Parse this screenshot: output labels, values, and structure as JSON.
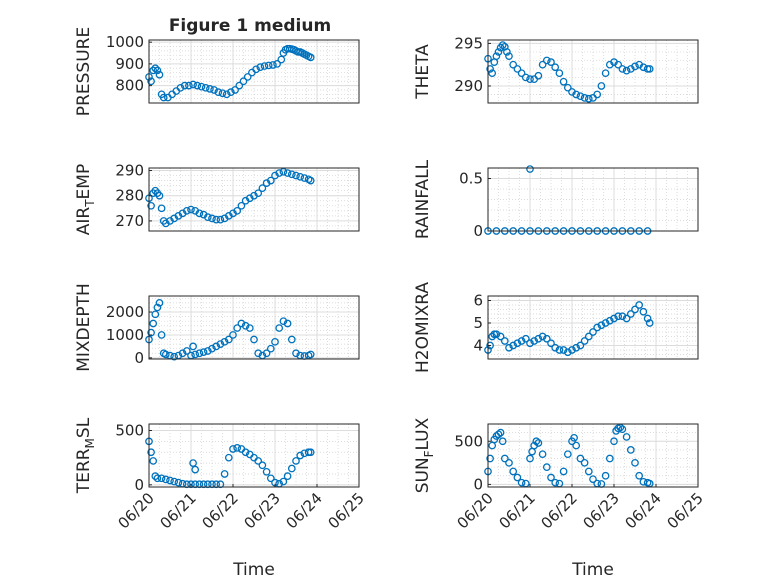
{
  "figure": {
    "title": "Figure 1 medium",
    "marker_color": "#0072BD",
    "marker": "open-circle",
    "grid": true,
    "minor_grid": true
  },
  "chart_data": [
    {
      "type": "scatter",
      "ylabel": "PRESSURE",
      "xlim": [
        "06/20",
        "06/25"
      ],
      "ylim": [
        720,
        1010
      ],
      "yticks": [
        800,
        900,
        1000
      ],
      "xticks": [],
      "series": [
        {
          "x": [
            0.0,
            0.05,
            0.1,
            0.15,
            0.2,
            0.25,
            0.3,
            0.35,
            0.45,
            0.55,
            0.65,
            0.75,
            0.85,
            0.95,
            1.05,
            1.15,
            1.25,
            1.35,
            1.45,
            1.55,
            1.65,
            1.75,
            1.85,
            1.95,
            2.05,
            2.15,
            2.25,
            2.35,
            2.45,
            2.55,
            2.65,
            2.75,
            2.85,
            2.95,
            3.05,
            3.15,
            3.2,
            3.25,
            3.3,
            3.35,
            3.4,
            3.45,
            3.5,
            3.55,
            3.6,
            3.65,
            3.7,
            3.75,
            3.8,
            3.85
          ],
          "y": [
            840,
            820,
            870,
            880,
            870,
            850,
            760,
            745,
            745,
            760,
            775,
            790,
            800,
            800,
            805,
            800,
            795,
            790,
            785,
            780,
            770,
            765,
            760,
            770,
            780,
            800,
            820,
            840,
            860,
            875,
            885,
            890,
            893,
            895,
            900,
            920,
            950,
            965,
            970,
            970,
            968,
            965,
            960,
            955,
            955,
            950,
            945,
            940,
            935,
            930
          ]
        }
      ]
    },
    {
      "type": "scatter",
      "ylabel": "THETA",
      "xlim": [
        "06/20",
        "06/25"
      ],
      "ylim": [
        288,
        295.4
      ],
      "yticks": [
        290,
        295
      ],
      "xticks": [],
      "series": [
        {
          "x": [
            0.0,
            0.05,
            0.1,
            0.15,
            0.2,
            0.25,
            0.3,
            0.35,
            0.4,
            0.45,
            0.5,
            0.6,
            0.7,
            0.8,
            0.9,
            1.0,
            1.1,
            1.2,
            1.3,
            1.4,
            1.5,
            1.6,
            1.7,
            1.8,
            1.9,
            2.0,
            2.1,
            2.2,
            2.3,
            2.4,
            2.5,
            2.6,
            2.7,
            2.8,
            2.9,
            3.0,
            3.1,
            3.2,
            3.3,
            3.4,
            3.5,
            3.6,
            3.7,
            3.8,
            3.85
          ],
          "y": [
            293.2,
            292.0,
            291.5,
            292.8,
            293.5,
            294.0,
            294.5,
            294.8,
            294.6,
            294.0,
            293.5,
            292.5,
            292.0,
            291.5,
            291.0,
            290.8,
            290.8,
            291.2,
            292.5,
            293.0,
            292.8,
            292.2,
            291.5,
            290.5,
            289.8,
            289.3,
            289.0,
            288.8,
            288.6,
            288.5,
            288.6,
            289.0,
            290.0,
            291.5,
            292.5,
            292.8,
            292.5,
            292.0,
            291.8,
            292.0,
            292.3,
            292.5,
            292.2,
            292.0,
            292.0
          ]
        }
      ]
    },
    {
      "type": "scatter",
      "ylabel": "AIR_TEMP",
      "xlim": [
        "06/20",
        "06/25"
      ],
      "ylim": [
        266,
        291
      ],
      "yticks": [
        270,
        280,
        290
      ],
      "xticks": [],
      "series": [
        {
          "x": [
            0.0,
            0.05,
            0.1,
            0.15,
            0.2,
            0.25,
            0.3,
            0.35,
            0.4,
            0.5,
            0.6,
            0.7,
            0.8,
            0.9,
            1.0,
            1.1,
            1.2,
            1.3,
            1.4,
            1.5,
            1.6,
            1.7,
            1.8,
            1.9,
            2.0,
            2.1,
            2.2,
            2.3,
            2.4,
            2.5,
            2.6,
            2.7,
            2.8,
            2.9,
            3.0,
            3.1,
            3.2,
            3.3,
            3.4,
            3.5,
            3.6,
            3.7,
            3.8,
            3.85
          ],
          "y": [
            279,
            276,
            281,
            282,
            281,
            280,
            275,
            270,
            269,
            270,
            271,
            272,
            273,
            274,
            274.5,
            274,
            273,
            272.5,
            271.5,
            271,
            270.5,
            270.5,
            271,
            272,
            273,
            274,
            276,
            278,
            279,
            280,
            281,
            283,
            285,
            286,
            288,
            289,
            289.5,
            289,
            288.5,
            288,
            287.5,
            287,
            286.5,
            286
          ]
        }
      ]
    },
    {
      "type": "scatter",
      "ylabel": "RAINFALL",
      "xlim": [
        "06/20",
        "06/25"
      ],
      "ylim": [
        0,
        0.6
      ],
      "yticks": [
        0,
        0.5
      ],
      "xticks": [],
      "series": [
        {
          "x": [
            0.0,
            0.2,
            0.4,
            0.6,
            0.8,
            1.0,
            1.2,
            1.4,
            1.6,
            1.8,
            2.0,
            2.2,
            2.4,
            2.6,
            2.8,
            3.0,
            3.2,
            3.4,
            3.6,
            3.8,
            1.0
          ],
          "y": [
            0,
            0,
            0,
            0,
            0,
            0,
            0,
            0,
            0,
            0,
            0,
            0,
            0,
            0,
            0,
            0,
            0,
            0,
            0,
            0,
            0.59
          ]
        }
      ]
    },
    {
      "type": "scatter",
      "ylabel": "MIXDEPTH",
      "xlim": [
        "06/20",
        "06/25"
      ],
      "ylim": [
        -50,
        2700
      ],
      "yticks": [
        0,
        1000,
        2000
      ],
      "xticks": [],
      "series": [
        {
          "x": [
            0.0,
            0.05,
            0.1,
            0.15,
            0.2,
            0.25,
            0.3,
            0.35,
            0.4,
            0.5,
            0.6,
            0.7,
            0.8,
            0.9,
            1.0,
            1.1,
            1.2,
            1.3,
            1.4,
            1.5,
            1.6,
            1.7,
            1.8,
            1.9,
            2.0,
            2.1,
            2.2,
            2.3,
            2.4,
            2.5,
            2.6,
            2.7,
            2.8,
            2.9,
            3.0,
            3.1,
            3.2,
            3.3,
            3.4,
            3.5,
            3.6,
            3.7,
            3.8,
            3.85,
            1.05
          ],
          "y": [
            800,
            1100,
            1500,
            1900,
            2200,
            2400,
            1000,
            200,
            150,
            100,
            50,
            100,
            200,
            300,
            100,
            150,
            200,
            250,
            300,
            400,
            500,
            600,
            700,
            800,
            1000,
            1300,
            1500,
            1400,
            1300,
            800,
            200,
            100,
            200,
            400,
            700,
            1300,
            1600,
            1500,
            800,
            200,
            100,
            80,
            100,
            150,
            500
          ]
        }
      ]
    },
    {
      "type": "scatter",
      "ylabel": "H2OMIXRA",
      "xlim": [
        "06/20",
        "06/25"
      ],
      "ylim": [
        3.4,
        6.2
      ],
      "yticks": [
        4,
        5,
        6
      ],
      "xticks": [],
      "series": [
        {
          "x": [
            0.0,
            0.05,
            0.1,
            0.15,
            0.2,
            0.3,
            0.4,
            0.5,
            0.6,
            0.7,
            0.8,
            0.9,
            1.0,
            1.1,
            1.2,
            1.3,
            1.4,
            1.5,
            1.6,
            1.7,
            1.8,
            1.9,
            2.0,
            2.1,
            2.2,
            2.3,
            2.4,
            2.5,
            2.6,
            2.7,
            2.8,
            2.9,
            3.0,
            3.1,
            3.2,
            3.3,
            3.4,
            3.5,
            3.6,
            3.7,
            3.8,
            3.85
          ],
          "y": [
            3.8,
            4.0,
            4.4,
            4.5,
            4.5,
            4.4,
            4.2,
            3.9,
            4.0,
            4.1,
            4.2,
            4.3,
            4.1,
            4.2,
            4.3,
            4.4,
            4.3,
            4.1,
            3.9,
            3.8,
            3.8,
            3.7,
            3.8,
            3.9,
            4.0,
            4.2,
            4.4,
            4.6,
            4.8,
            4.9,
            5.0,
            5.1,
            5.2,
            5.3,
            5.3,
            5.2,
            5.4,
            5.6,
            5.8,
            5.5,
            5.2,
            5.0
          ]
        }
      ]
    },
    {
      "type": "scatter",
      "ylabel": "TERR_MSL",
      "xlim": [
        "06/20",
        "06/25"
      ],
      "ylim": [
        -20,
        560
      ],
      "yticks": [
        0,
        500
      ],
      "xticks": [
        "06/20",
        "06/21",
        "06/22",
        "06/23",
        "06/24",
        "06/25"
      ],
      "xlabel": "Time",
      "series": [
        {
          "x": [
            0.0,
            0.05,
            0.1,
            0.15,
            0.2,
            0.3,
            0.4,
            0.5,
            0.6,
            0.7,
            0.8,
            0.9,
            1.0,
            1.1,
            1.2,
            1.3,
            1.4,
            1.5,
            1.6,
            1.7,
            1.8,
            1.9,
            2.0,
            2.1,
            2.2,
            2.3,
            2.4,
            2.5,
            2.6,
            2.7,
            2.8,
            2.9,
            3.0,
            3.1,
            3.2,
            3.3,
            3.4,
            3.5,
            3.6,
            3.7,
            3.8,
            3.85,
            1.05,
            1.1
          ],
          "y": [
            400,
            300,
            220,
            80,
            60,
            60,
            50,
            40,
            30,
            20,
            10,
            5,
            5,
            5,
            5,
            5,
            5,
            5,
            5,
            5,
            100,
            250,
            330,
            340,
            330,
            300,
            280,
            250,
            220,
            180,
            120,
            60,
            20,
            10,
            30,
            80,
            150,
            220,
            270,
            290,
            300,
            300,
            200,
            140
          ]
        }
      ]
    },
    {
      "type": "scatter",
      "ylabel": "SUN_FLUX",
      "xlim": [
        "06/20",
        "06/25"
      ],
      "ylim": [
        -30,
        700
      ],
      "yticks": [
        0,
        500
      ],
      "xticks": [
        "06/20",
        "06/21",
        "06/22",
        "06/23",
        "06/24",
        "06/25"
      ],
      "xlabel": "Time",
      "series": [
        {
          "x": [
            0.0,
            0.05,
            0.1,
            0.15,
            0.2,
            0.25,
            0.3,
            0.35,
            0.4,
            0.5,
            0.6,
            0.7,
            0.8,
            0.9,
            1.0,
            1.05,
            1.1,
            1.15,
            1.2,
            1.3,
            1.4,
            1.5,
            1.6,
            1.7,
            1.8,
            1.9,
            2.0,
            2.05,
            2.1,
            2.2,
            2.3,
            2.4,
            2.5,
            2.6,
            2.7,
            2.8,
            2.9,
            3.0,
            3.05,
            3.1,
            3.15,
            3.2,
            3.3,
            3.4,
            3.5,
            3.6,
            3.7,
            3.8,
            3.85
          ],
          "y": [
            150,
            300,
            450,
            520,
            560,
            580,
            600,
            500,
            300,
            250,
            150,
            80,
            20,
            10,
            300,
            380,
            450,
            500,
            480,
            350,
            200,
            80,
            20,
            10,
            150,
            350,
            500,
            540,
            450,
            300,
            250,
            150,
            60,
            10,
            5,
            100,
            300,
            500,
            620,
            650,
            660,
            640,
            550,
            400,
            250,
            100,
            30,
            20,
            10
          ]
        }
      ]
    }
  ]
}
